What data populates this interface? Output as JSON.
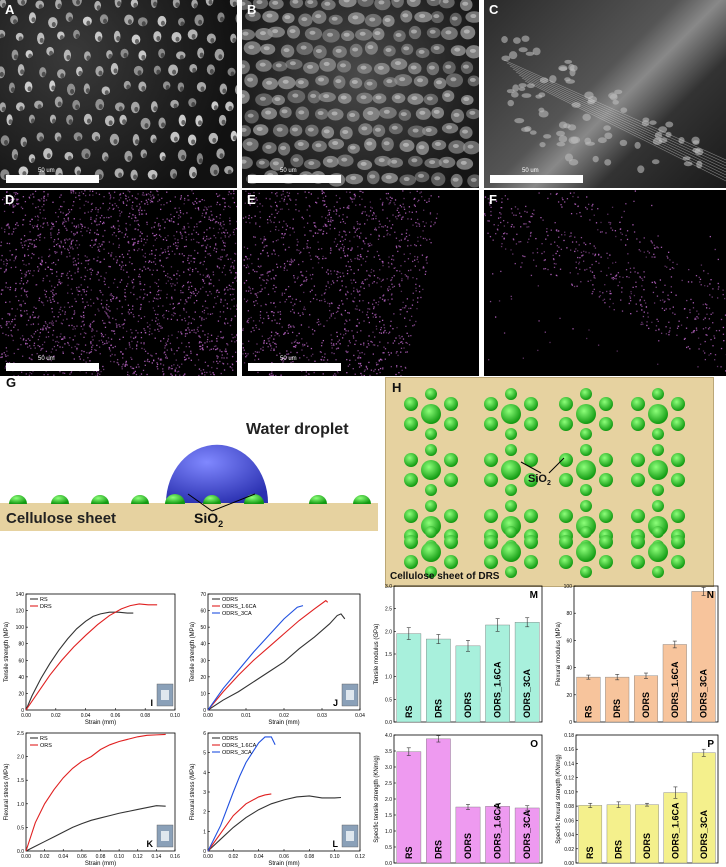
{
  "panels": {
    "A": {
      "label": "A",
      "scale": "50 um"
    },
    "B": {
      "label": "B",
      "scale": "50 um"
    },
    "C": {
      "label": "C",
      "scale": "50 um"
    },
    "D": {
      "label": "D",
      "scale": "50 um"
    },
    "E": {
      "label": "E",
      "scale": "50 um"
    },
    "F": {
      "label": "F",
      "scale": ""
    }
  },
  "schematic_g": {
    "label": "G",
    "water": "Water droplet",
    "sheet": "Cellulose sheet",
    "sio2_main": "SiO",
    "sio2_sub": "2"
  },
  "schematic_h": {
    "label": "H",
    "sio2_main": "SiO",
    "sio2_sub": "2",
    "caption": "Cellulose sheet of DRS"
  },
  "colors": {
    "sheet": "#e6d2a0",
    "sphere": "#22cc22",
    "droplet": "#3f46c8",
    "edx": "#c46ad0"
  },
  "chart_data": [
    {
      "id": "I",
      "type": "line",
      "xlabel": "Strain (mm)",
      "ylabel": "Tensile strength (MPa)",
      "xlim": [
        0,
        0.1
      ],
      "ylim": [
        0,
        140
      ],
      "xticks": [
        "0.00",
        "0.02",
        "0.04",
        "0.06",
        "0.08",
        "0.10"
      ],
      "yticks": [
        "0",
        "20",
        "40",
        "60",
        "80",
        "100",
        "120",
        "140"
      ],
      "series": [
        {
          "name": "RS",
          "color": "#333333",
          "x": [
            0,
            0.004,
            0.01,
            0.016,
            0.022,
            0.028,
            0.034,
            0.04,
            0.045,
            0.05,
            0.056,
            0.062,
            0.068,
            0.072
          ],
          "y": [
            0,
            17,
            38,
            56,
            72,
            86,
            98,
            107,
            113,
            116,
            118,
            118,
            117,
            117
          ]
        },
        {
          "name": "DRS",
          "color": "#e02020",
          "x": [
            0,
            0.008,
            0.016,
            0.024,
            0.032,
            0.04,
            0.048,
            0.056,
            0.064,
            0.07,
            0.076,
            0.082,
            0.088
          ],
          "y": [
            0,
            21,
            42,
            60,
            76,
            90,
            103,
            114,
            122,
            126,
            128,
            127,
            127
          ]
        }
      ]
    },
    {
      "id": "J",
      "type": "line",
      "xlabel": "Strain (mm)",
      "ylabel": "Tensile strength (MPa)",
      "xlim": [
        0,
        0.04
      ],
      "ylim": [
        0,
        70
      ],
      "xticks": [
        "0.00",
        "0.01",
        "0.02",
        "0.03",
        "0.04"
      ],
      "yticks": [
        "0",
        "10",
        "20",
        "30",
        "40",
        "50",
        "60",
        "70"
      ],
      "series": [
        {
          "name": "ODRS",
          "color": "#333333",
          "x": [
            0,
            0.004,
            0.008,
            0.012,
            0.016,
            0.02,
            0.024,
            0.028,
            0.032,
            0.034,
            0.035,
            0.036
          ],
          "y": [
            0,
            6,
            11,
            17,
            23,
            29,
            37,
            44,
            52,
            57,
            58,
            55
          ]
        },
        {
          "name": "ODRS_1.6CA",
          "color": "#e02020",
          "x": [
            0,
            0.004,
            0.008,
            0.012,
            0.016,
            0.02,
            0.024,
            0.028,
            0.031,
            0.0315
          ],
          "y": [
            0,
            11,
            21,
            30,
            38,
            46,
            54,
            61,
            66,
            65
          ]
        },
        {
          "name": "ODRS_3CA",
          "color": "#2050e0",
          "x": [
            0,
            0.004,
            0.008,
            0.012,
            0.016,
            0.02,
            0.0235,
            0.025
          ],
          "y": [
            0,
            13,
            24,
            35,
            45,
            55,
            62,
            63
          ]
        }
      ]
    },
    {
      "id": "K",
      "type": "line",
      "xlabel": "Strain (mm)",
      "ylabel": "Flexural stress (MPa)",
      "xlim": [
        0,
        0.16
      ],
      "ylim": [
        0,
        2.5
      ],
      "xticks": [
        "0.00",
        "0.02",
        "0.04",
        "0.06",
        "0.08",
        "0.10",
        "0.12",
        "0.14",
        "0.16"
      ],
      "yticks": [
        "0.0",
        "0.5",
        "1.0",
        "1.5",
        "2.0",
        "2.5"
      ],
      "series": [
        {
          "name": "RS",
          "color": "#333333",
          "x": [
            0,
            0.01,
            0.02,
            0.03,
            0.04,
            0.05,
            0.06,
            0.07,
            0.08,
            0.09,
            0.1,
            0.11,
            0.12,
            0.13,
            0.14,
            0.15
          ],
          "y": [
            0,
            0.1,
            0.2,
            0.3,
            0.4,
            0.5,
            0.58,
            0.65,
            0.7,
            0.75,
            0.8,
            0.84,
            0.88,
            0.92,
            0.96,
            0.95
          ]
        },
        {
          "name": "ORS",
          "color": "#e02020",
          "x": [
            0,
            0.01,
            0.02,
            0.03,
            0.04,
            0.05,
            0.06,
            0.07,
            0.08,
            0.09,
            0.1,
            0.11,
            0.12,
            0.13,
            0.14,
            0.15
          ],
          "y": [
            0,
            0.6,
            1.0,
            1.3,
            1.55,
            1.75,
            1.9,
            2.0,
            2.15,
            2.25,
            2.32,
            2.37,
            2.42,
            2.45,
            2.46,
            2.47
          ]
        }
      ]
    },
    {
      "id": "L",
      "type": "line",
      "xlabel": "Strain (mm)",
      "ylabel": "Flexural stress (MPa)",
      "xlim": [
        0,
        0.12
      ],
      "ylim": [
        0,
        6
      ],
      "xticks": [
        "0.00",
        "0.02",
        "0.04",
        "0.06",
        "0.08",
        "0.10",
        "0.12"
      ],
      "yticks": [
        "0",
        "1",
        "2",
        "3",
        "4",
        "5",
        "6"
      ],
      "series": [
        {
          "name": "ODRS",
          "color": "#333333",
          "x": [
            0,
            0.01,
            0.02,
            0.03,
            0.04,
            0.05,
            0.06,
            0.07,
            0.08,
            0.09,
            0.1,
            0.105
          ],
          "y": [
            0,
            0.6,
            1.2,
            1.7,
            2.1,
            2.4,
            2.6,
            2.75,
            2.8,
            2.7,
            2.7,
            2.72
          ]
        },
        {
          "name": "ODRS_1.6CA",
          "color": "#e02020",
          "x": [
            0,
            0.01,
            0.02,
            0.03,
            0.04,
            0.045,
            0.05
          ],
          "y": [
            0,
            0.9,
            1.8,
            2.4,
            2.75,
            2.85,
            2.9
          ]
        },
        {
          "name": "ODRS_3CA",
          "color": "#2050e0",
          "x": [
            0,
            0.01,
            0.02,
            0.025,
            0.03,
            0.035,
            0.04,
            0.045,
            0.05,
            0.053
          ],
          "y": [
            0,
            1.3,
            3.0,
            3.8,
            4.5,
            5.0,
            5.5,
            5.8,
            5.8,
            5.4
          ]
        }
      ]
    },
    {
      "id": "M",
      "type": "bar",
      "ylabel": "Tensile modulus (GPa)",
      "ylim": [
        0,
        3.0
      ],
      "color": "#a8f0dc",
      "yticks": [
        "0.0",
        "0.5",
        "1.0",
        "1.5",
        "2.0",
        "2.5",
        "3.0"
      ],
      "categories": [
        "RS",
        "DRS",
        "ODRS",
        "ODRS_1.6CA",
        "ODRS_3CA"
      ],
      "values": [
        1.95,
        1.83,
        1.68,
        2.14,
        2.2
      ],
      "errors": [
        0.13,
        0.1,
        0.12,
        0.14,
        0.1
      ]
    },
    {
      "id": "N",
      "type": "bar",
      "ylabel": "Flexural modulus (MPa)",
      "ylim": [
        0,
        100
      ],
      "color": "#f7c49c",
      "yticks": [
        "0",
        "20",
        "40",
        "60",
        "80",
        "100"
      ],
      "categories": [
        "RS",
        "DRS",
        "ODRS",
        "ODRS_1.6CA",
        "ODRS_3CA"
      ],
      "values": [
        33,
        33,
        34,
        57,
        96
      ],
      "errors": [
        1.5,
        2,
        2,
        2.5,
        3
      ]
    },
    {
      "id": "O",
      "type": "bar",
      "ylabel": "Specific tensile strength (KNm/g)",
      "ylim": [
        0,
        4.0
      ],
      "color": "#ee9af0",
      "yticks": [
        "0.0",
        "0.5",
        "1.0",
        "1.5",
        "2.0",
        "2.5",
        "3.0",
        "3.5",
        "4.0"
      ],
      "categories": [
        "RS",
        "DRS",
        "ODRS",
        "ODRS_1.6CA",
        "ODRS_3CA"
      ],
      "values": [
        3.48,
        3.88,
        1.75,
        1.77,
        1.72
      ],
      "errors": [
        0.12,
        0.1,
        0.08,
        0.08,
        0.07
      ]
    },
    {
      "id": "P",
      "type": "bar",
      "ylabel": "Specific flexural strength (KNm/g)",
      "ylim": [
        0,
        0.18
      ],
      "color": "#f4f08c",
      "yticks": [
        "0.00",
        "0.02",
        "0.04",
        "0.06",
        "0.08",
        "0.10",
        "0.12",
        "0.14",
        "0.16",
        "0.18"
      ],
      "categories": [
        "RS",
        "DRS",
        "ODRS",
        "ODRS_1.6CA",
        "ODRS_3CA"
      ],
      "values": [
        0.081,
        0.082,
        0.082,
        0.099,
        0.155
      ],
      "errors": [
        0.003,
        0.004,
        0.002,
        0.008,
        0.005
      ]
    }
  ]
}
